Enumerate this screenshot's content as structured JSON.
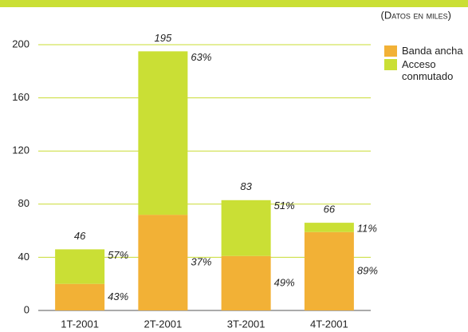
{
  "chart_data": {
    "type": "stacked_bar",
    "note": "(Datos en miles)",
    "categories": [
      "1T-2001",
      "2T-2001",
      "3T-2001",
      "4T-2001"
    ],
    "series": [
      {
        "name": "Banda ancha",
        "color": "#f2b136",
        "values": [
          20,
          72,
          41,
          59
        ],
        "percent_labels": [
          "43%",
          "37%",
          "49%",
          "89%"
        ]
      },
      {
        "name": "Acceso conmutado",
        "color": "#cadf35",
        "values": [
          26,
          123,
          42,
          7
        ],
        "percent_labels": [
          "57%",
          "63%",
          "51%",
          "11%"
        ]
      }
    ],
    "totals": [
      46,
      195,
      83,
      66
    ],
    "ylim": [
      0,
      200
    ],
    "yticks": [
      0,
      40,
      80,
      120,
      160,
      200
    ],
    "grid": true
  }
}
